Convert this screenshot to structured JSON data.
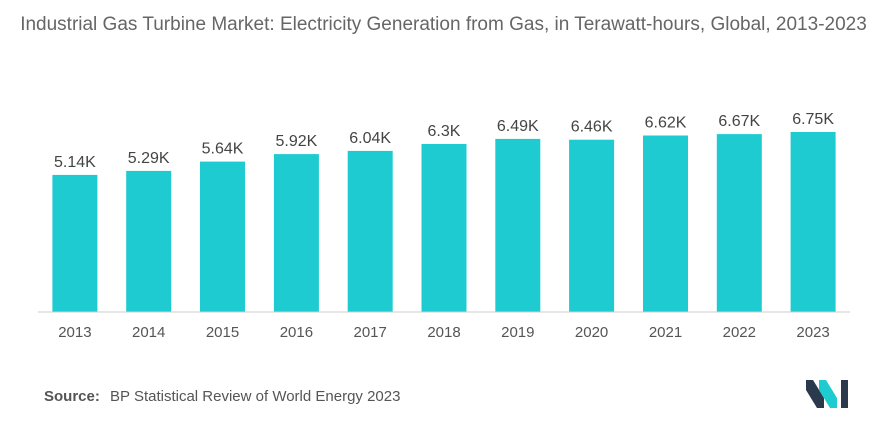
{
  "title": "Industrial Gas Turbine Market: Electricity Generation from Gas, in Terawatt-hours, Global, 2013-2023",
  "source": {
    "label": "Source:",
    "text": "BP Statistical Review of World Energy 2023"
  },
  "colors": {
    "bar": "#1ecbd1",
    "text": "#555555",
    "title": "#666666",
    "logo_dark": "#2a3a4c",
    "logo_accent": "#1ecbd1"
  },
  "chart_data": {
    "type": "bar",
    "categories": [
      "2013",
      "2014",
      "2015",
      "2016",
      "2017",
      "2018",
      "2019",
      "2020",
      "2021",
      "2022",
      "2023"
    ],
    "values": [
      5140,
      5290,
      5640,
      5920,
      6040,
      6300,
      6490,
      6460,
      6620,
      6670,
      6750
    ],
    "labels": [
      "5.14K",
      "5.29K",
      "5.64K",
      "5.92K",
      "6.04K",
      "6.3K",
      "6.49K",
      "6.46K",
      "6.62K",
      "6.67K",
      "6.75K"
    ],
    "title": "",
    "xlabel": "",
    "ylabel": "",
    "ylim": [
      0,
      7500
    ],
    "grid": false,
    "legend": "none"
  }
}
